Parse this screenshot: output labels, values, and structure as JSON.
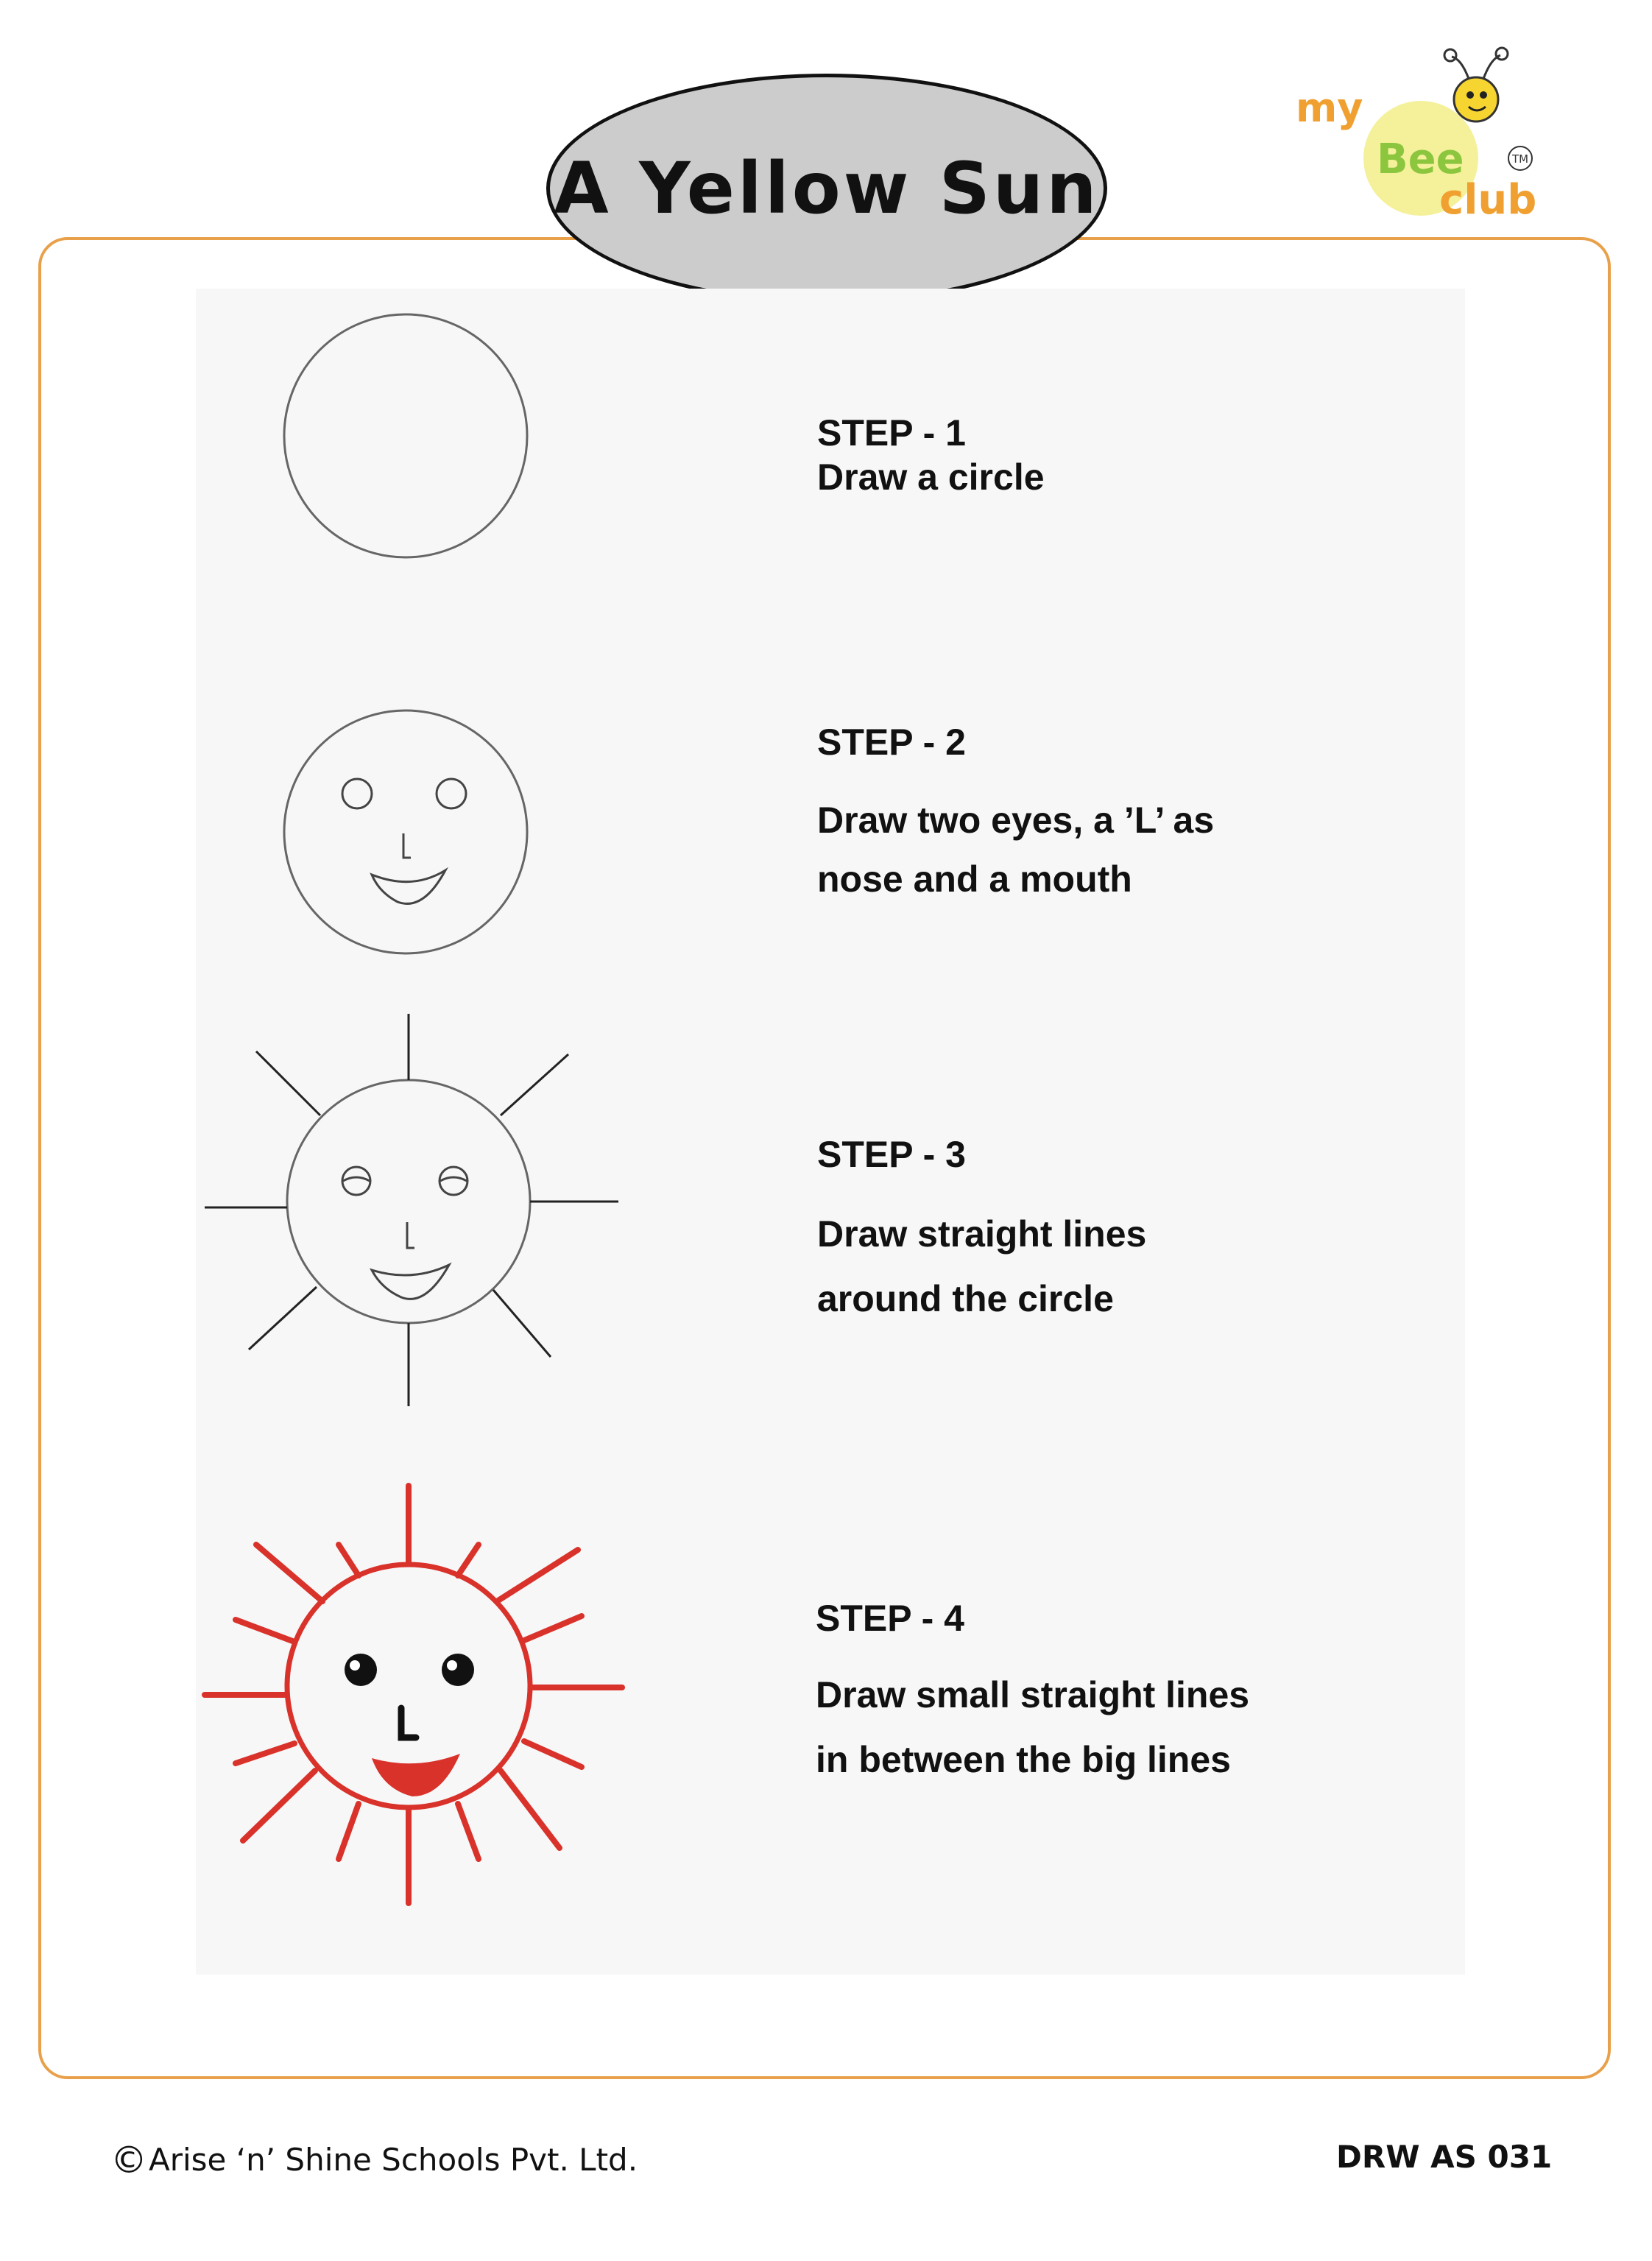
{
  "title": "A Yellow Sun",
  "logo": {
    "line1": "my",
    "line2": "Bee",
    "line3": "club",
    "trademark": "TM"
  },
  "steps": [
    {
      "heading": "STEP - 1",
      "lines": [
        "Draw a circle"
      ]
    },
    {
      "heading": "STEP - 2",
      "lines": [
        "Draw  two eyes, a ’L’ as",
        "nose and a mouth"
      ]
    },
    {
      "heading": "STEP - 3",
      "lines": [
        "Draw straight lines",
        "around the circle"
      ]
    },
    {
      "heading": "STEP - 4",
      "lines": [
        "Draw small straight lines",
        "in between the big lines"
      ]
    }
  ],
  "footer": {
    "copyright_symbol": "©",
    "copyright": "Arise ‘n’ Shine Schools Pvt. Ltd.",
    "code": "DRW  AS 031"
  },
  "colors": {
    "frame": "#e8a04a",
    "oval": "#cccccc",
    "sun": "#d9322b",
    "pencil": "#555555",
    "logo_ball": "#f4f19a"
  }
}
